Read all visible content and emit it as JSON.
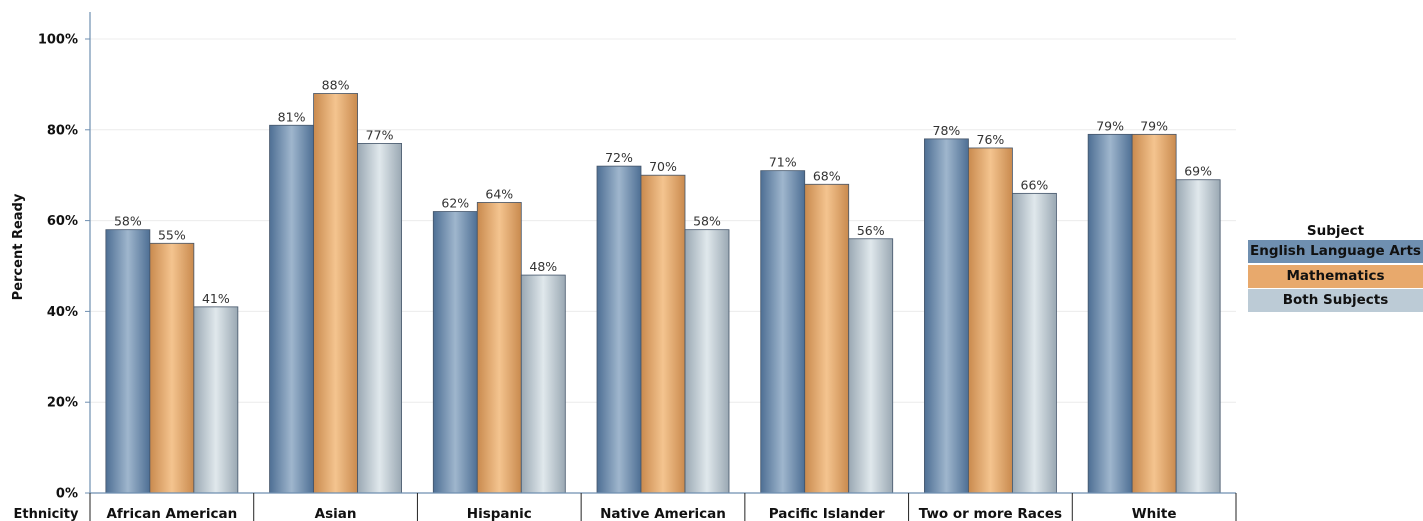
{
  "chart_data": {
    "type": "bar",
    "ylabel": "Percent Ready",
    "xlabel": "Ethnicity",
    "ylim": [
      0,
      100
    ],
    "yticks": [
      "0%",
      "20%",
      "40%",
      "60%",
      "80%",
      "100%"
    ],
    "categories": [
      "African American",
      "Asian",
      "Hispanic",
      "Native American",
      "Pacific Islander",
      "Two or more Races",
      "White"
    ],
    "legend_title": "Subject",
    "legend_placement": "right",
    "grid": true,
    "series": [
      {
        "name": "English Language Arts",
        "color": "#6f8fb0",
        "values": [
          58,
          81,
          62,
          72,
          71,
          78,
          79
        ],
        "labels": [
          "58%",
          "81%",
          "62%",
          "72%",
          "71%",
          "78%",
          "79%"
        ]
      },
      {
        "name": "Mathematics",
        "color": "#e8a96c",
        "values": [
          55,
          88,
          64,
          70,
          68,
          76,
          79
        ],
        "labels": [
          "55%",
          "88%",
          "64%",
          "70%",
          "68%",
          "76%",
          "79%"
        ]
      },
      {
        "name": "Both Subjects",
        "color": "#bccbd6",
        "values": [
          41,
          77,
          48,
          58,
          56,
          66,
          69
        ],
        "labels": [
          "41%",
          "77%",
          "48%",
          "58%",
          "56%",
          "66%",
          "69%"
        ]
      }
    ]
  }
}
